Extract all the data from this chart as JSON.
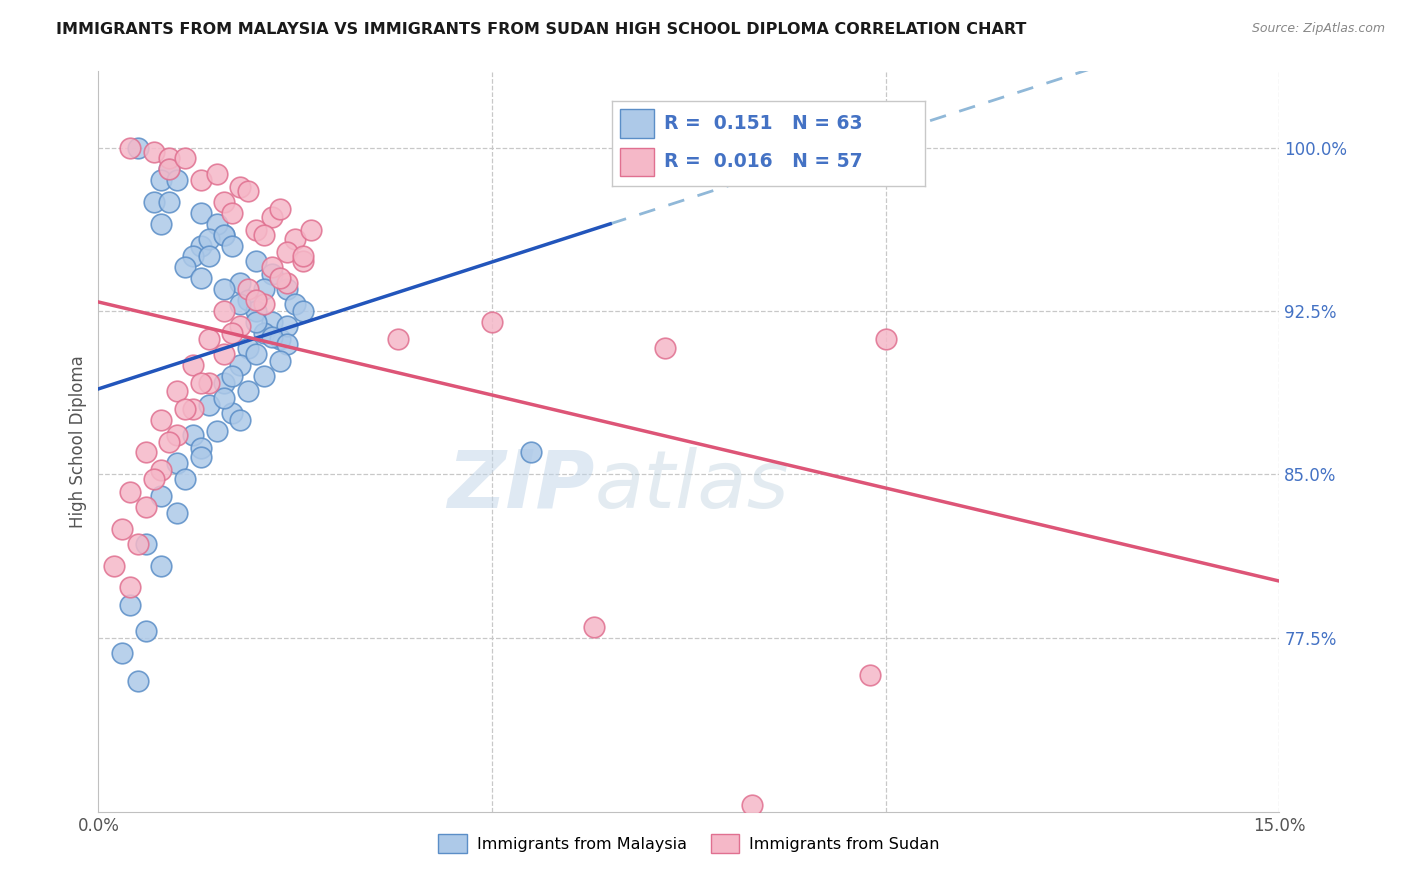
{
  "title": "IMMIGRANTS FROM MALAYSIA VS IMMIGRANTS FROM SUDAN HIGH SCHOOL DIPLOMA CORRELATION CHART",
  "source": "Source: ZipAtlas.com",
  "ylabel": "High School Diploma",
  "right_yticks": [
    "100.0%",
    "92.5%",
    "85.0%",
    "77.5%"
  ],
  "right_ytick_vals": [
    1.0,
    0.925,
    0.85,
    0.775
  ],
  "watermark_zip": "ZIP",
  "watermark_atlas": "atlas",
  "malaysia_color": "#adc9e8",
  "malaysia_edge_color": "#5b8ec7",
  "sudan_color": "#f5b8c8",
  "sudan_edge_color": "#e07090",
  "malaysia_line_color": "#2255bb",
  "sudan_line_color": "#dd5577",
  "dashed_line_color": "#90b8d8",
  "background_color": "#ffffff",
  "grid_color": "#c8c8c8",
  "title_color": "#1a1a1a",
  "right_axis_color": "#4472c4",
  "xlim": [
    0.0,
    0.15
  ],
  "ylim": [
    0.695,
    1.035
  ],
  "malaysia_x": [
    0.005,
    0.009,
    0.008,
    0.007,
    0.009,
    0.01,
    0.008,
    0.013,
    0.016,
    0.013,
    0.015,
    0.012,
    0.014,
    0.016,
    0.011,
    0.014,
    0.013,
    0.017,
    0.02,
    0.018,
    0.016,
    0.019,
    0.022,
    0.02,
    0.021,
    0.018,
    0.024,
    0.022,
    0.025,
    0.021,
    0.02,
    0.026,
    0.023,
    0.024,
    0.019,
    0.022,
    0.024,
    0.018,
    0.02,
    0.021,
    0.023,
    0.016,
    0.019,
    0.017,
    0.014,
    0.017,
    0.016,
    0.018,
    0.012,
    0.013,
    0.015,
    0.01,
    0.011,
    0.013,
    0.008,
    0.01,
    0.006,
    0.008,
    0.004,
    0.006,
    0.003,
    0.005,
    0.055
  ],
  "malaysia_y": [
    1.0,
    0.99,
    0.985,
    0.975,
    0.975,
    0.985,
    0.965,
    0.97,
    0.96,
    0.955,
    0.965,
    0.95,
    0.958,
    0.96,
    0.945,
    0.95,
    0.94,
    0.955,
    0.948,
    0.938,
    0.935,
    0.93,
    0.942,
    0.925,
    0.935,
    0.928,
    0.935,
    0.92,
    0.928,
    0.915,
    0.92,
    0.925,
    0.912,
    0.918,
    0.908,
    0.913,
    0.91,
    0.9,
    0.905,
    0.895,
    0.902,
    0.892,
    0.888,
    0.895,
    0.882,
    0.878,
    0.885,
    0.875,
    0.868,
    0.862,
    0.87,
    0.855,
    0.848,
    0.858,
    0.84,
    0.832,
    0.818,
    0.808,
    0.79,
    0.778,
    0.768,
    0.755,
    0.86
  ],
  "sudan_x": [
    0.004,
    0.007,
    0.009,
    0.009,
    0.011,
    0.013,
    0.015,
    0.018,
    0.016,
    0.019,
    0.017,
    0.022,
    0.02,
    0.023,
    0.021,
    0.025,
    0.024,
    0.027,
    0.026,
    0.022,
    0.024,
    0.026,
    0.019,
    0.021,
    0.023,
    0.016,
    0.018,
    0.02,
    0.014,
    0.016,
    0.017,
    0.012,
    0.014,
    0.01,
    0.012,
    0.013,
    0.008,
    0.01,
    0.011,
    0.006,
    0.008,
    0.009,
    0.004,
    0.006,
    0.007,
    0.003,
    0.005,
    0.002,
    0.004,
    0.038,
    0.05,
    0.072,
    0.1,
    0.098,
    0.063,
    0.083
  ],
  "sudan_y": [
    1.0,
    0.998,
    0.995,
    0.99,
    0.995,
    0.985,
    0.988,
    0.982,
    0.975,
    0.98,
    0.97,
    0.968,
    0.962,
    0.972,
    0.96,
    0.958,
    0.952,
    0.962,
    0.948,
    0.945,
    0.938,
    0.95,
    0.935,
    0.928,
    0.94,
    0.925,
    0.918,
    0.93,
    0.912,
    0.905,
    0.915,
    0.9,
    0.892,
    0.888,
    0.88,
    0.892,
    0.875,
    0.868,
    0.88,
    0.86,
    0.852,
    0.865,
    0.842,
    0.835,
    0.848,
    0.825,
    0.818,
    0.808,
    0.798,
    0.912,
    0.92,
    0.908,
    0.912,
    0.758,
    0.78,
    0.698
  ]
}
